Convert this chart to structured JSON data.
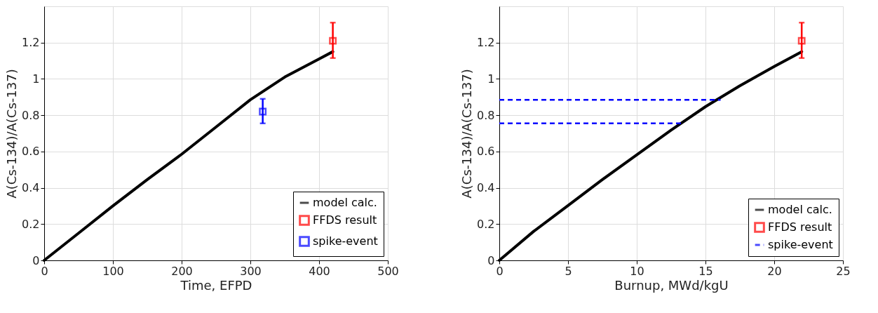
{
  "chart_data": [
    {
      "type": "line",
      "xlabel": "Time, EFPD",
      "ylabel": "A(Cs-134)/A(Cs-137)",
      "xlim": [
        0,
        500
      ],
      "xticks": [
        0,
        100,
        200,
        300,
        400,
        500
      ],
      "ylim": [
        0,
        1.4
      ],
      "yticks": [
        0,
        0.2,
        0.4,
        0.6,
        0.8,
        1,
        1.2
      ],
      "grid": true,
      "legend": "bottom right",
      "series": [
        {
          "name": "model calc.",
          "color": "#000000",
          "line_style": "solid",
          "marker": "none",
          "x": [
            0,
            50,
            100,
            150,
            200,
            250,
            300,
            350,
            400,
            420
          ],
          "values": [
            0,
            0.15,
            0.3,
            0.445,
            0.585,
            0.735,
            0.885,
            1.01,
            1.11,
            1.15
          ]
        },
        {
          "name": "FFDS result",
          "color": "#ff0000",
          "type": "scatter",
          "marker": "square",
          "x": [
            420
          ],
          "values": [
            1.21
          ],
          "errors": [
            [
              1.115,
              1.31
            ]
          ]
        },
        {
          "name": "spike-event",
          "color": "#0000ff",
          "type": "scatter",
          "marker": "square",
          "x": [
            318
          ],
          "values": [
            0.82
          ],
          "errors": [
            [
              0.755,
              0.89
            ]
          ]
        }
      ]
    },
    {
      "type": "line",
      "xlabel": "Burnup, MWd/kgU",
      "ylabel": "A(Cs-134)/A(Cs-137)",
      "xlim": [
        0,
        25
      ],
      "xticks": [
        0,
        5,
        10,
        15,
        20,
        25
      ],
      "ylim": [
        0,
        1.4
      ],
      "yticks": [
        0,
        0.2,
        0.4,
        0.6,
        0.8,
        1,
        1.2
      ],
      "grid": true,
      "legend": "bottom right",
      "series": [
        {
          "name": "model calc.",
          "color": "#000000",
          "line_style": "solid",
          "marker": "none",
          "x": [
            0,
            2.5,
            5,
            7.5,
            10,
            12.5,
            15,
            17.5,
            20,
            22
          ],
          "values": [
            0,
            0.16,
            0.302,
            0.445,
            0.582,
            0.718,
            0.847,
            0.962,
            1.068,
            1.15
          ]
        },
        {
          "name": "FFDS result",
          "color": "#ff0000",
          "type": "scatter",
          "marker": "square",
          "x": [
            22
          ],
          "values": [
            1.21
          ],
          "errors": [
            [
              1.115,
              1.31
            ]
          ]
        },
        {
          "name": "spike-event",
          "color": "#0000ff",
          "line_style": "dashed",
          "marker": "none",
          "x": [
            0,
            16.1
          ],
          "values": [
            0.885,
            0.885
          ]
        },
        {
          "color": "#0000ff",
          "line_style": "dashed",
          "marker": "none",
          "x": [
            0,
            13.3
          ],
          "values": [
            0.755,
            0.755
          ]
        }
      ]
    }
  ]
}
